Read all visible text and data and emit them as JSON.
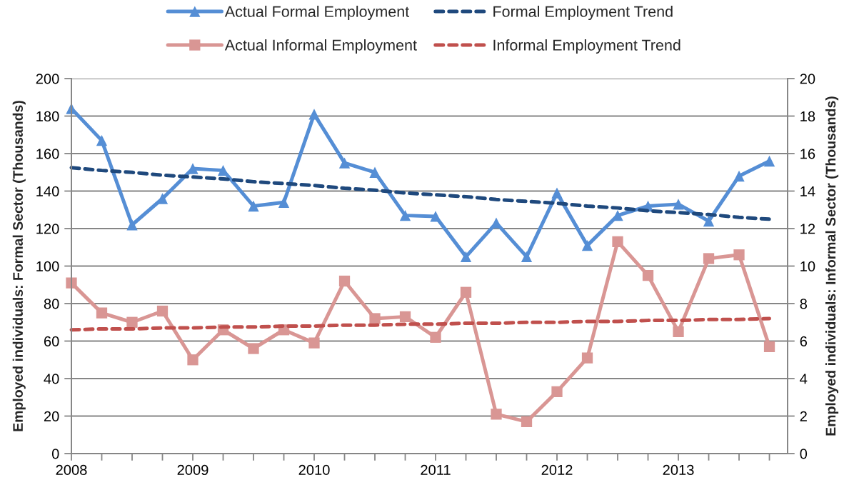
{
  "chart_data": {
    "type": "line",
    "ylabel": "Employed individuals: Formal Sector (Thousands)",
    "y2label": "Employed individuals: Informal Sector (Thousands)",
    "x": [
      2008,
      2008.25,
      2008.5,
      2008.75,
      2009,
      2009.25,
      2009.5,
      2009.75,
      2010,
      2010.25,
      2010.5,
      2010.75,
      2011,
      2011.25,
      2011.5,
      2011.75,
      2012,
      2012.25,
      2012.5,
      2012.75,
      2013,
      2013.25,
      2013.5,
      2013.75
    ],
    "series": [
      {
        "name": "Actual Formal Employment",
        "color": "#558ed5",
        "marker": "triangle",
        "line_style": "solid",
        "values": [
          184,
          167,
          122,
          136,
          152,
          151,
          132,
          134,
          181,
          155,
          150,
          127,
          126.5,
          105,
          123,
          105,
          139,
          111,
          127,
          132,
          133,
          124,
          148,
          156
        ]
      },
      {
        "name": "Formal Employment Trend",
        "color": "#1f497d",
        "marker": "none",
        "line_style": "dashed",
        "values": [
          152.5,
          151,
          150,
          148.5,
          147.5,
          146.5,
          145,
          144,
          143,
          141.5,
          140.5,
          139,
          138,
          137,
          135.5,
          134.5,
          133.5,
          132,
          131,
          129.5,
          128.5,
          127.5,
          126,
          125
        ]
      },
      {
        "name": "Actual Informal Employment",
        "color": "#d99694",
        "marker": "square",
        "line_style": "solid",
        "axis": "y2",
        "values": [
          9.1,
          7.5,
          7.0,
          7.6,
          5.0,
          6.6,
          5.6,
          6.6,
          5.9,
          9.2,
          7.2,
          7.3,
          6.2,
          8.6,
          2.1,
          1.7,
          3.3,
          5.1,
          11.3,
          9.5,
          6.5,
          10.4,
          10.6,
          5.7
        ]
      },
      {
        "name": "Informal Employment Trend",
        "color": "#c0504d",
        "marker": "none",
        "line_style": "dashed",
        "axis": "y2",
        "values": [
          6.6,
          6.65,
          6.65,
          6.7,
          6.7,
          6.75,
          6.75,
          6.8,
          6.8,
          6.85,
          6.85,
          6.9,
          6.9,
          6.95,
          6.95,
          7.0,
          7.0,
          7.05,
          7.05,
          7.1,
          7.1,
          7.15,
          7.15,
          7.2
        ]
      }
    ],
    "xlim": [
      2008,
      2013.9
    ],
    "xticks": [
      2008,
      {
        "value": 2008.25,
        "label": null
      },
      {
        "value": 2008.5,
        "label": null
      },
      {
        "value": 2008.75,
        "label": null
      },
      2009,
      {
        "value": 2009.25,
        "label": null
      },
      {
        "value": 2009.5,
        "label": null
      },
      {
        "value": 2009.75,
        "label": null
      },
      2010,
      {
        "value": 2010.25,
        "label": null
      },
      {
        "value": 2010.5,
        "label": null
      },
      {
        "value": 2010.75,
        "label": null
      },
      2011,
      {
        "value": 2011.25,
        "label": null
      },
      {
        "value": 2011.5,
        "label": null
      },
      {
        "value": 2011.75,
        "label": null
      },
      2012,
      {
        "value": 2012.25,
        "label": null
      },
      {
        "value": 2012.5,
        "label": null
      },
      {
        "value": 2012.75,
        "label": null
      },
      2013,
      {
        "value": 2013.25,
        "label": null
      },
      {
        "value": 2013.5,
        "label": null
      },
      {
        "value": 2013.75,
        "label": null
      }
    ],
    "ylim": [
      0,
      200
    ],
    "yticks": [
      0,
      20,
      40,
      60,
      80,
      100,
      120,
      140,
      160,
      180,
      200
    ],
    "y2lim": [
      0,
      20
    ],
    "y2ticks": [
      0,
      2,
      4,
      6,
      8,
      10,
      12,
      14,
      16,
      18,
      20
    ],
    "grid": "y",
    "legend": "top"
  }
}
